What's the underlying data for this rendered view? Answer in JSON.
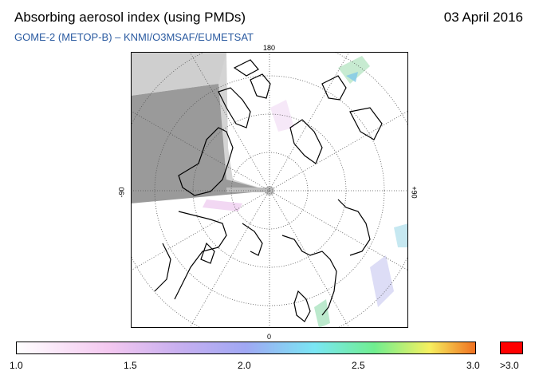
{
  "header": {
    "title": "Absorbing aerosol index (using PMDs)",
    "date": "03 April 2016",
    "subtitle": "GOME-2 (METOP-B)  –   KNMI/O3MSAF/EUMETSAT"
  },
  "map": {
    "longitude_labels": {
      "top": "180",
      "bottom": "0",
      "left": "-90",
      "right": "+90"
    },
    "colors": {
      "no_data": "#c8c8c8",
      "night": "#909090",
      "frame": "#000000"
    }
  },
  "colorbar": {
    "ticks": [
      "1.0",
      "1.5",
      "2.0",
      "2.5",
      "3.0"
    ],
    "overflow_label": ">3.0",
    "overflow_color": "#ff0000"
  }
}
